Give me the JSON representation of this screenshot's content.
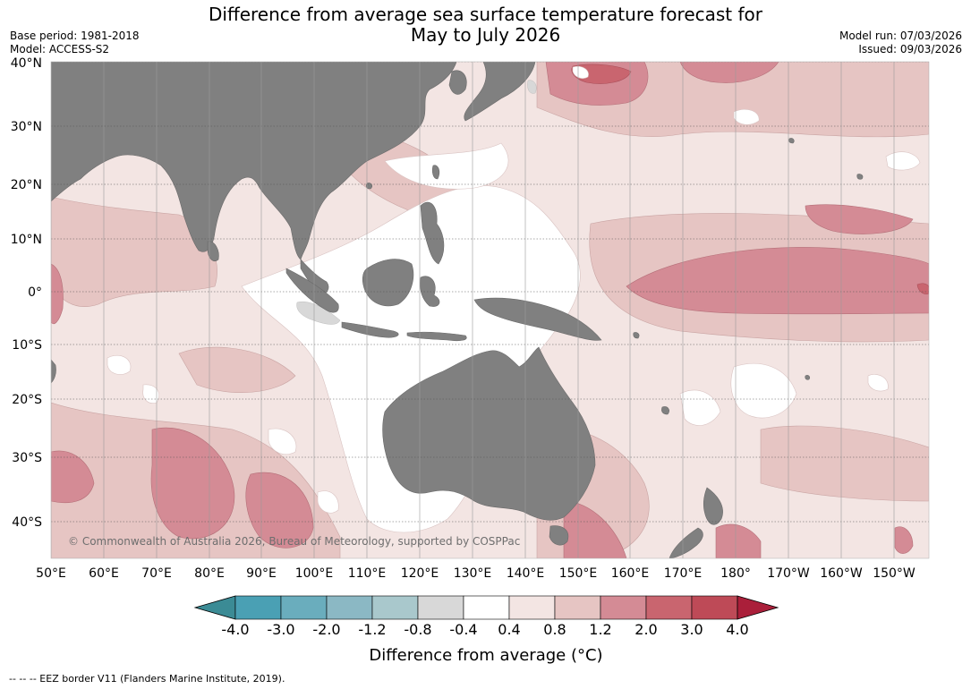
{
  "title_line1": "Difference from average sea surface temperature forecast for",
  "title_line2": "May to July 2026",
  "meta": {
    "base_period": "Base period: 1981-2018",
    "model": "Model: ACCESS-S2",
    "model_run": "Model run: 07/03/2026",
    "issued": "Issued: 09/03/2026"
  },
  "map": {
    "lat_labels": [
      "40°N",
      "30°N",
      "20°N",
      "10°N",
      "0°",
      "10°S",
      "20°S",
      "30°S",
      "40°S"
    ],
    "lon_labels": [
      "50°E",
      "60°E",
      "70°E",
      "80°E",
      "90°E",
      "100°E",
      "110°E",
      "120°E",
      "130°E",
      "140°E",
      "150°E",
      "160°E",
      "170°E",
      "180°",
      "170°W",
      "160°W",
      "150°W"
    ],
    "copyright": "© Commonwealth of Australia 2026, Bureau of Meteorology, supported by COSPPac",
    "land_color": "#808080"
  },
  "colorbar": {
    "tick_labels": [
      "-4.0",
      "-3.0",
      "-2.0",
      "-1.2",
      "-0.8",
      "-0.4",
      "0.4",
      "0.8",
      "1.2",
      "2.0",
      "3.0",
      "4.0"
    ],
    "colors": [
      "#3b8b95",
      "#4aa0b4",
      "#6aadbd",
      "#8bb8c4",
      "#a9c8cc",
      "#d8d8d8",
      "#ffffff",
      "#f3e5e3",
      "#e6c5c3",
      "#d48b95",
      "#c9656f",
      "#be4a57",
      "#aa1f3a"
    ],
    "title": "Difference from average (°C)"
  },
  "footer": "-- -- -- EEZ border V11 (Flanders Marine Institute, 2019)."
}
